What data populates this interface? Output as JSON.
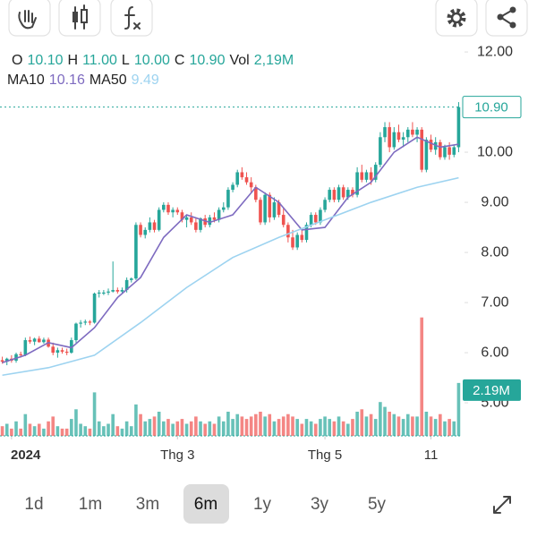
{
  "ohlc_labels": [
    {
      "label": "O",
      "value": "10.10"
    },
    {
      "label": "H",
      "value": "11.00"
    },
    {
      "label": "L",
      "value": "10.00"
    },
    {
      "label": "C",
      "value": "10.90"
    },
    {
      "label": "Vol",
      "value": "2,19M"
    }
  ],
  "timeframes": {
    "options": [
      "1d",
      "1m",
      "3m",
      "6m",
      "1y",
      "3y",
      "5y"
    ],
    "selected": 3
  },
  "chart_data": {
    "type": "candlestick",
    "up_color": "#26a69a",
    "down_color": "#ef5350",
    "ylim": [
      4.34,
      12.18
    ],
    "yticks": [
      {
        "value": 12,
        "label": "12.00"
      },
      {
        "value": 10,
        "label": "10.00"
      },
      {
        "value": 9,
        "label": "9.00"
      },
      {
        "value": 8,
        "label": "8.00"
      },
      {
        "value": 7,
        "label": "7.00"
      },
      {
        "value": 6,
        "label": "6.00"
      },
      {
        "value": 5,
        "label": "5.00"
      }
    ],
    "volume_ylim": [
      0,
      5
    ],
    "xticks": [
      {
        "value": 2,
        "label": "2024"
      },
      {
        "value": 38,
        "label": "Thg 3"
      },
      {
        "value": 70,
        "label": "Thg 5"
      },
      {
        "value": 93,
        "label": "11"
      }
    ],
    "last_price_label": "10.90",
    "last_volume_label": "2.19M",
    "series": [
      {
        "name": "MA10",
        "value_label": "10.16",
        "color": "#7e6bc0",
        "x": [
          0,
          5,
          10,
          15,
          20,
          25,
          30,
          35,
          40,
          45,
          50,
          55,
          60,
          65,
          70,
          75,
          80,
          85,
          90,
          95,
          99
        ],
        "values": [
          5.8,
          5.95,
          6.2,
          6.1,
          6.5,
          7.1,
          7.5,
          8.3,
          8.75,
          8.6,
          8.75,
          9.3,
          9.0,
          8.45,
          8.5,
          9.1,
          9.4,
          10.0,
          10.3,
          10.1,
          10.16
        ]
      },
      {
        "name": "MA50",
        "value_label": "9.49",
        "color": "#9dd3f0",
        "x": [
          0,
          10,
          20,
          30,
          40,
          50,
          60,
          70,
          80,
          90,
          99
        ],
        "values": [
          5.55,
          5.7,
          5.95,
          6.6,
          7.3,
          7.9,
          8.3,
          8.65,
          9.0,
          9.3,
          9.49
        ]
      }
    ],
    "candles": [
      [
        5.85,
        5.92,
        5.78,
        5.82,
        0.4
      ],
      [
        5.82,
        5.9,
        5.75,
        5.88,
        0.5
      ],
      [
        5.88,
        5.95,
        5.8,
        5.84,
        0.3
      ],
      [
        5.84,
        6.0,
        5.8,
        5.97,
        0.6
      ],
      [
        5.97,
        6.02,
        5.9,
        5.95,
        0.3
      ],
      [
        5.95,
        6.3,
        5.93,
        6.25,
        0.9
      ],
      [
        6.25,
        6.32,
        6.18,
        6.22,
        0.5
      ],
      [
        6.22,
        6.3,
        6.15,
        6.28,
        0.4
      ],
      [
        6.28,
        6.33,
        6.2,
        6.21,
        0.5
      ],
      [
        6.21,
        6.3,
        6.18,
        6.26,
        0.3
      ],
      [
        6.26,
        6.3,
        6.1,
        6.12,
        0.6
      ],
      [
        6.12,
        6.2,
        5.95,
        6.0,
        0.8
      ],
      [
        6.0,
        6.1,
        5.9,
        6.05,
        0.4
      ],
      [
        6.05,
        6.1,
        5.98,
        6.02,
        0.3
      ],
      [
        6.02,
        6.08,
        5.95,
        6.0,
        0.3
      ],
      [
        6.0,
        6.3,
        5.98,
        6.25,
        0.7
      ],
      [
        6.25,
        6.6,
        6.2,
        6.58,
        1.1
      ],
      [
        6.58,
        6.65,
        6.5,
        6.6,
        0.5
      ],
      [
        6.6,
        6.66,
        6.55,
        6.62,
        0.4
      ],
      [
        6.62,
        6.65,
        6.55,
        6.6,
        0.3
      ],
      [
        6.6,
        7.2,
        6.58,
        7.18,
        1.8
      ],
      [
        7.18,
        7.25,
        7.1,
        7.2,
        0.6
      ],
      [
        7.2,
        7.25,
        7.15,
        7.2,
        0.4
      ],
      [
        7.2,
        7.28,
        7.15,
        7.22,
        0.5
      ],
      [
        7.22,
        7.82,
        7.2,
        7.25,
        0.9
      ],
      [
        7.25,
        7.3,
        7.18,
        7.22,
        0.4
      ],
      [
        7.22,
        7.3,
        7.18,
        7.25,
        0.3
      ],
      [
        7.25,
        7.5,
        7.2,
        7.45,
        0.6
      ],
      [
        7.45,
        7.5,
        7.4,
        7.48,
        0.4
      ],
      [
        7.48,
        8.6,
        7.45,
        8.55,
        1.3
      ],
      [
        8.55,
        8.6,
        8.3,
        8.35,
        0.9
      ],
      [
        8.35,
        8.5,
        8.28,
        8.45,
        0.6
      ],
      [
        8.45,
        8.7,
        8.4,
        8.6,
        0.7
      ],
      [
        8.6,
        8.65,
        8.4,
        8.45,
        0.8
      ],
      [
        8.45,
        8.9,
        8.42,
        8.85,
        1.0
      ],
      [
        8.85,
        9.0,
        8.8,
        8.95,
        0.6
      ],
      [
        8.95,
        9.0,
        8.75,
        8.8,
        0.7
      ],
      [
        8.8,
        8.9,
        8.7,
        8.85,
        0.5
      ],
      [
        8.85,
        8.9,
        8.75,
        8.8,
        0.6
      ],
      [
        8.8,
        8.85,
        8.6,
        8.65,
        0.7
      ],
      [
        8.65,
        8.75,
        8.5,
        8.7,
        0.5
      ],
      [
        8.7,
        8.8,
        8.55,
        8.6,
        0.6
      ],
      [
        8.6,
        8.7,
        8.4,
        8.45,
        0.8
      ],
      [
        8.45,
        8.7,
        8.4,
        8.68,
        0.6
      ],
      [
        8.68,
        8.75,
        8.5,
        8.55,
        0.5
      ],
      [
        8.55,
        8.75,
        8.5,
        8.7,
        0.6
      ],
      [
        8.7,
        8.8,
        8.6,
        8.65,
        0.5
      ],
      [
        8.65,
        8.9,
        8.6,
        8.85,
        0.8
      ],
      [
        8.85,
        9.0,
        8.8,
        8.9,
        0.6
      ],
      [
        8.9,
        9.3,
        8.85,
        9.25,
        1.0
      ],
      [
        9.25,
        9.4,
        9.2,
        9.35,
        0.7
      ],
      [
        9.35,
        9.65,
        9.3,
        9.6,
        0.9
      ],
      [
        9.6,
        9.7,
        9.45,
        9.5,
        0.8
      ],
      [
        9.5,
        9.6,
        9.35,
        9.4,
        0.7
      ],
      [
        9.4,
        9.5,
        9.2,
        9.3,
        0.8
      ],
      [
        9.3,
        9.35,
        9.0,
        9.05,
        0.9
      ],
      [
        9.05,
        9.1,
        8.55,
        8.6,
        1.0
      ],
      [
        8.6,
        9.2,
        8.55,
        9.15,
        0.8
      ],
      [
        9.15,
        9.2,
        8.6,
        8.7,
        0.9
      ],
      [
        8.7,
        9.1,
        8.65,
        9.0,
        0.6
      ],
      [
        9.0,
        9.05,
        8.7,
        8.75,
        0.7
      ],
      [
        8.75,
        8.9,
        8.5,
        8.55,
        0.8
      ],
      [
        8.55,
        8.6,
        8.2,
        8.3,
        0.9
      ],
      [
        8.3,
        8.45,
        8.05,
        8.1,
        0.8
      ],
      [
        8.1,
        8.4,
        8.05,
        8.35,
        0.7
      ],
      [
        8.35,
        8.45,
        8.2,
        8.25,
        0.5
      ],
      [
        8.25,
        8.6,
        8.2,
        8.55,
        0.7
      ],
      [
        8.55,
        8.8,
        8.5,
        8.75,
        0.6
      ],
      [
        8.75,
        8.8,
        8.55,
        8.6,
        0.5
      ],
      [
        8.6,
        8.9,
        8.55,
        8.85,
        0.7
      ],
      [
        8.85,
        9.1,
        8.8,
        9.05,
        0.8
      ],
      [
        9.05,
        9.3,
        9.0,
        9.25,
        0.7
      ],
      [
        9.25,
        9.3,
        9.0,
        9.05,
        0.6
      ],
      [
        9.05,
        9.35,
        9.0,
        9.3,
        0.8
      ],
      [
        9.3,
        9.35,
        9.05,
        9.1,
        0.6
      ],
      [
        9.1,
        9.3,
        9.05,
        9.25,
        0.5
      ],
      [
        9.25,
        9.3,
        9.1,
        9.15,
        0.7
      ],
      [
        9.15,
        9.7,
        9.1,
        9.6,
        1.0
      ],
      [
        9.6,
        9.75,
        9.4,
        9.45,
        1.1
      ],
      [
        9.45,
        9.65,
        9.4,
        9.6,
        0.8
      ],
      [
        9.6,
        9.7,
        9.35,
        9.45,
        0.9
      ],
      [
        9.45,
        9.8,
        9.4,
        9.75,
        0.7
      ],
      [
        9.75,
        10.4,
        9.7,
        10.3,
        1.4
      ],
      [
        10.3,
        10.6,
        10.2,
        10.5,
        1.2
      ],
      [
        10.5,
        10.6,
        10.0,
        10.1,
        1.0
      ],
      [
        10.1,
        10.5,
        10.05,
        10.4,
        0.9
      ],
      [
        10.4,
        10.55,
        10.2,
        10.25,
        0.8
      ],
      [
        10.25,
        10.4,
        10.1,
        10.3,
        0.7
      ],
      [
        10.3,
        10.5,
        10.2,
        10.45,
        0.9
      ],
      [
        10.45,
        10.6,
        10.3,
        10.35,
        0.8
      ],
      [
        10.35,
        10.5,
        10.2,
        10.45,
        0.8
      ],
      [
        10.45,
        10.5,
        9.6,
        9.65,
        4.9
      ],
      [
        9.65,
        10.3,
        9.6,
        10.25,
        1.0
      ],
      [
        10.25,
        10.35,
        10.0,
        10.05,
        0.8
      ],
      [
        10.05,
        10.3,
        9.95,
        10.2,
        0.7
      ],
      [
        10.2,
        10.25,
        9.85,
        9.9,
        0.9
      ],
      [
        9.9,
        10.15,
        9.85,
        10.1,
        0.6
      ],
      [
        10.1,
        10.2,
        9.85,
        9.95,
        0.7
      ],
      [
        9.95,
        10.15,
        9.9,
        10.1,
        0.6
      ],
      [
        10.1,
        11.0,
        10.0,
        10.9,
        2.19
      ]
    ]
  }
}
